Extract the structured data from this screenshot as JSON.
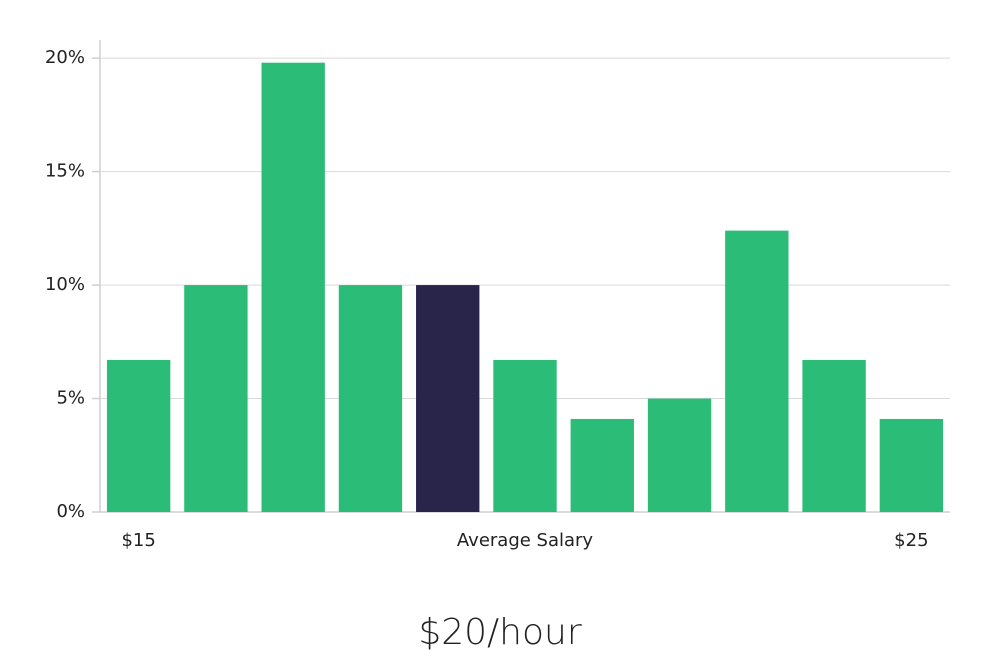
{
  "chart_data": {
    "type": "bar",
    "subtitle": "$20/hour",
    "xlabel": "Average Salary",
    "categories": [
      "$15",
      null,
      null,
      null,
      null,
      null,
      null,
      null,
      null,
      null,
      "$25"
    ],
    "values": [
      6.7,
      10,
      19.8,
      10,
      10,
      6.7,
      4.1,
      5,
      12.4,
      6.7,
      4.1
    ],
    "colors": [
      "#2bbd77",
      "#2bbd77",
      "#2bbd77",
      "#2bbd77",
      "#29244a",
      "#2bbd77",
      "#2bbd77",
      "#2bbd77",
      "#2bbd77",
      "#2bbd77",
      "#2bbd77"
    ],
    "ylim": [
      0,
      20.8
    ],
    "yticks": [
      {
        "value": 0,
        "label": "0%"
      },
      {
        "value": 5,
        "label": "5%"
      },
      {
        "value": 10,
        "label": "10%"
      },
      {
        "value": 15,
        "label": "15%"
      },
      {
        "value": 20,
        "label": "20%"
      }
    ],
    "grid": true
  }
}
